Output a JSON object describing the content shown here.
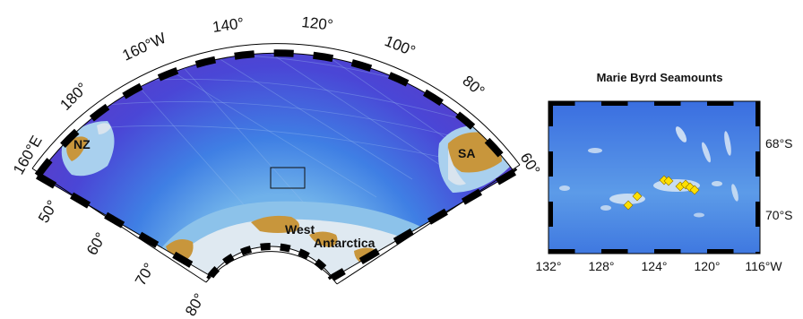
{
  "main_map": {
    "longitude_labels": [
      "160°E",
      "180°",
      "160°W",
      "140°",
      "120°",
      "100°",
      "80°",
      "60°"
    ],
    "latitude_labels": [
      "50°",
      "60°",
      "70°",
      "80°"
    ],
    "places": [
      {
        "key": "nz",
        "label": "NZ"
      },
      {
        "key": "sa",
        "label": "SA"
      },
      {
        "key": "west",
        "label": "West"
      },
      {
        "key": "antarctica",
        "label": "Antarctica"
      }
    ]
  },
  "inset_map": {
    "title": "Marie Byrd Seamounts",
    "longitude_labels": [
      "132°",
      "128°",
      "124°",
      "120°",
      "116°W"
    ],
    "latitude_labels": [
      "68°S",
      "70°S"
    ],
    "seamount_marker_color": "#ffe000",
    "seamount_count": 8
  },
  "colors": {
    "deep_ocean": "#4a3fd0",
    "ocean": "#2f6fe0",
    "shelf": "#7fb6e6",
    "land": "#c8963c",
    "ice": "#dde8f0"
  }
}
